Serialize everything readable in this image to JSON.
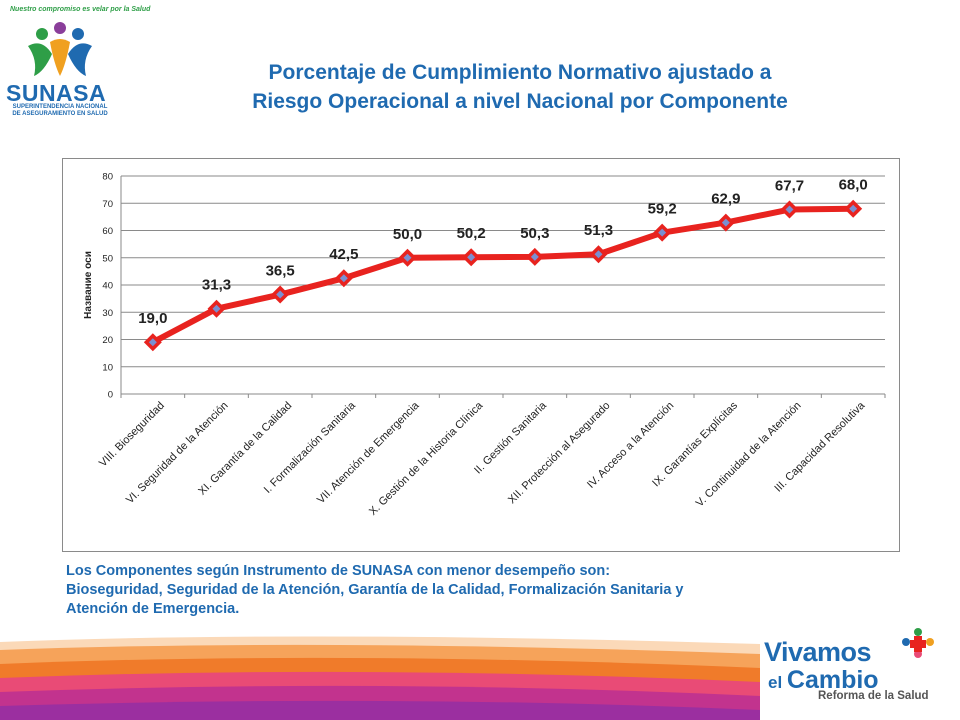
{
  "header": {
    "title_line1": "Porcentaje de Cumplimiento Normativo ajustado a",
    "title_line2": "Riesgo Operacional a nivel Nacional por Componente"
  },
  "logo_top_left": {
    "name": "SUNASA",
    "subtitle_line1": "SUPERINTENDENCIA NACIONAL",
    "subtitle_line2": "DE ASEGURAMIENTO EN SALUD",
    "motto": "Nuestro compromiso es velar por la Salud"
  },
  "chart_data": {
    "type": "line",
    "title": "",
    "xlabel": "",
    "ylabel": "Название оси",
    "ylim": [
      0,
      80
    ],
    "yticks": [
      "0",
      "10",
      "20",
      "30",
      "40",
      "50",
      "60",
      "70",
      "80"
    ],
    "grid": true,
    "categories": [
      "VIII. Bioseguridad",
      "VI. Seguridad de la Atención",
      "XI. Garantía de la Calidad",
      "I. Formalización Sanitaria",
      "VII. Atención de Emergencia",
      "X. Gestión de la Historia Clínica",
      "II. Gestión Sanitaria",
      "XII. Protección al Asegurado",
      "IV. Acceso a la Atención",
      "IX. Garantías Explícitas",
      "V. Continuidad de la Atención",
      "III. Capacidad Resolutiva"
    ],
    "values": [
      19.0,
      31.3,
      36.5,
      42.5,
      50.0,
      50.2,
      50.3,
      51.3,
      59.2,
      62.9,
      67.7,
      68.0
    ],
    "data_labels": [
      "19,0",
      "31,3",
      "36,5",
      "42,5",
      "50,0",
      "50,2",
      "50,3",
      "51,3",
      "59,2",
      "62,9",
      "67,7",
      "68,0"
    ],
    "line_color": "#e8231f",
    "marker_color": "#7b8fd1"
  },
  "conclusion": {
    "line1": "Los Componentes según Instrumento de SUNASA con menor desempeño son:",
    "line2": "Bioseguridad, Seguridad de la Atención, Garantía de la Calidad, Formalización Sanitaria y",
    "line3": "Atención de Emergencia."
  },
  "logo_bottom_right": {
    "word1": "Vivamos",
    "word2a": "el ",
    "word2b": "Cambio",
    "tagline": "Reforma de la Salud"
  }
}
